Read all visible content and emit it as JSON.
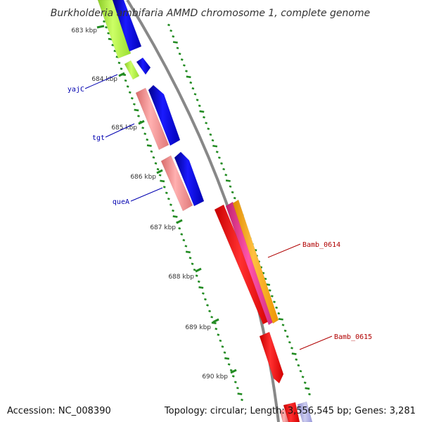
{
  "title": "Burkholderia ambifaria AMMD chromosome 1, complete genome",
  "ticks": [
    "683 kbp",
    "684 kbp",
    "685 kbp",
    "686 kbp",
    "687 kbp",
    "688 kbp",
    "689 kbp",
    "690 kbp"
  ],
  "gene_labels": [
    {
      "name": "yajC",
      "color": "#0000b0"
    },
    {
      "name": "tgt",
      "color": "#0000b0"
    },
    {
      "name": "queA",
      "color": "#0000b0"
    },
    {
      "name": "Bamb_0614",
      "color": "#b00000"
    },
    {
      "name": "Bamb_0615",
      "color": "#b00000"
    }
  ],
  "footer": {
    "accession": "Accession: NC_008390",
    "stats": "Topology: circular; Length: 3,556,545 bp; Genes: 3,281"
  },
  "colors": {
    "blue_gene": "#0000ee",
    "green_gene": "#aaf03c",
    "salmon_gene": "#ee8888",
    "red_gene": "#ff0000",
    "magenta_gene": "#ee3399",
    "orange_gene": "#ffa500",
    "backbone": "#888888",
    "tick": "#228B22"
  }
}
